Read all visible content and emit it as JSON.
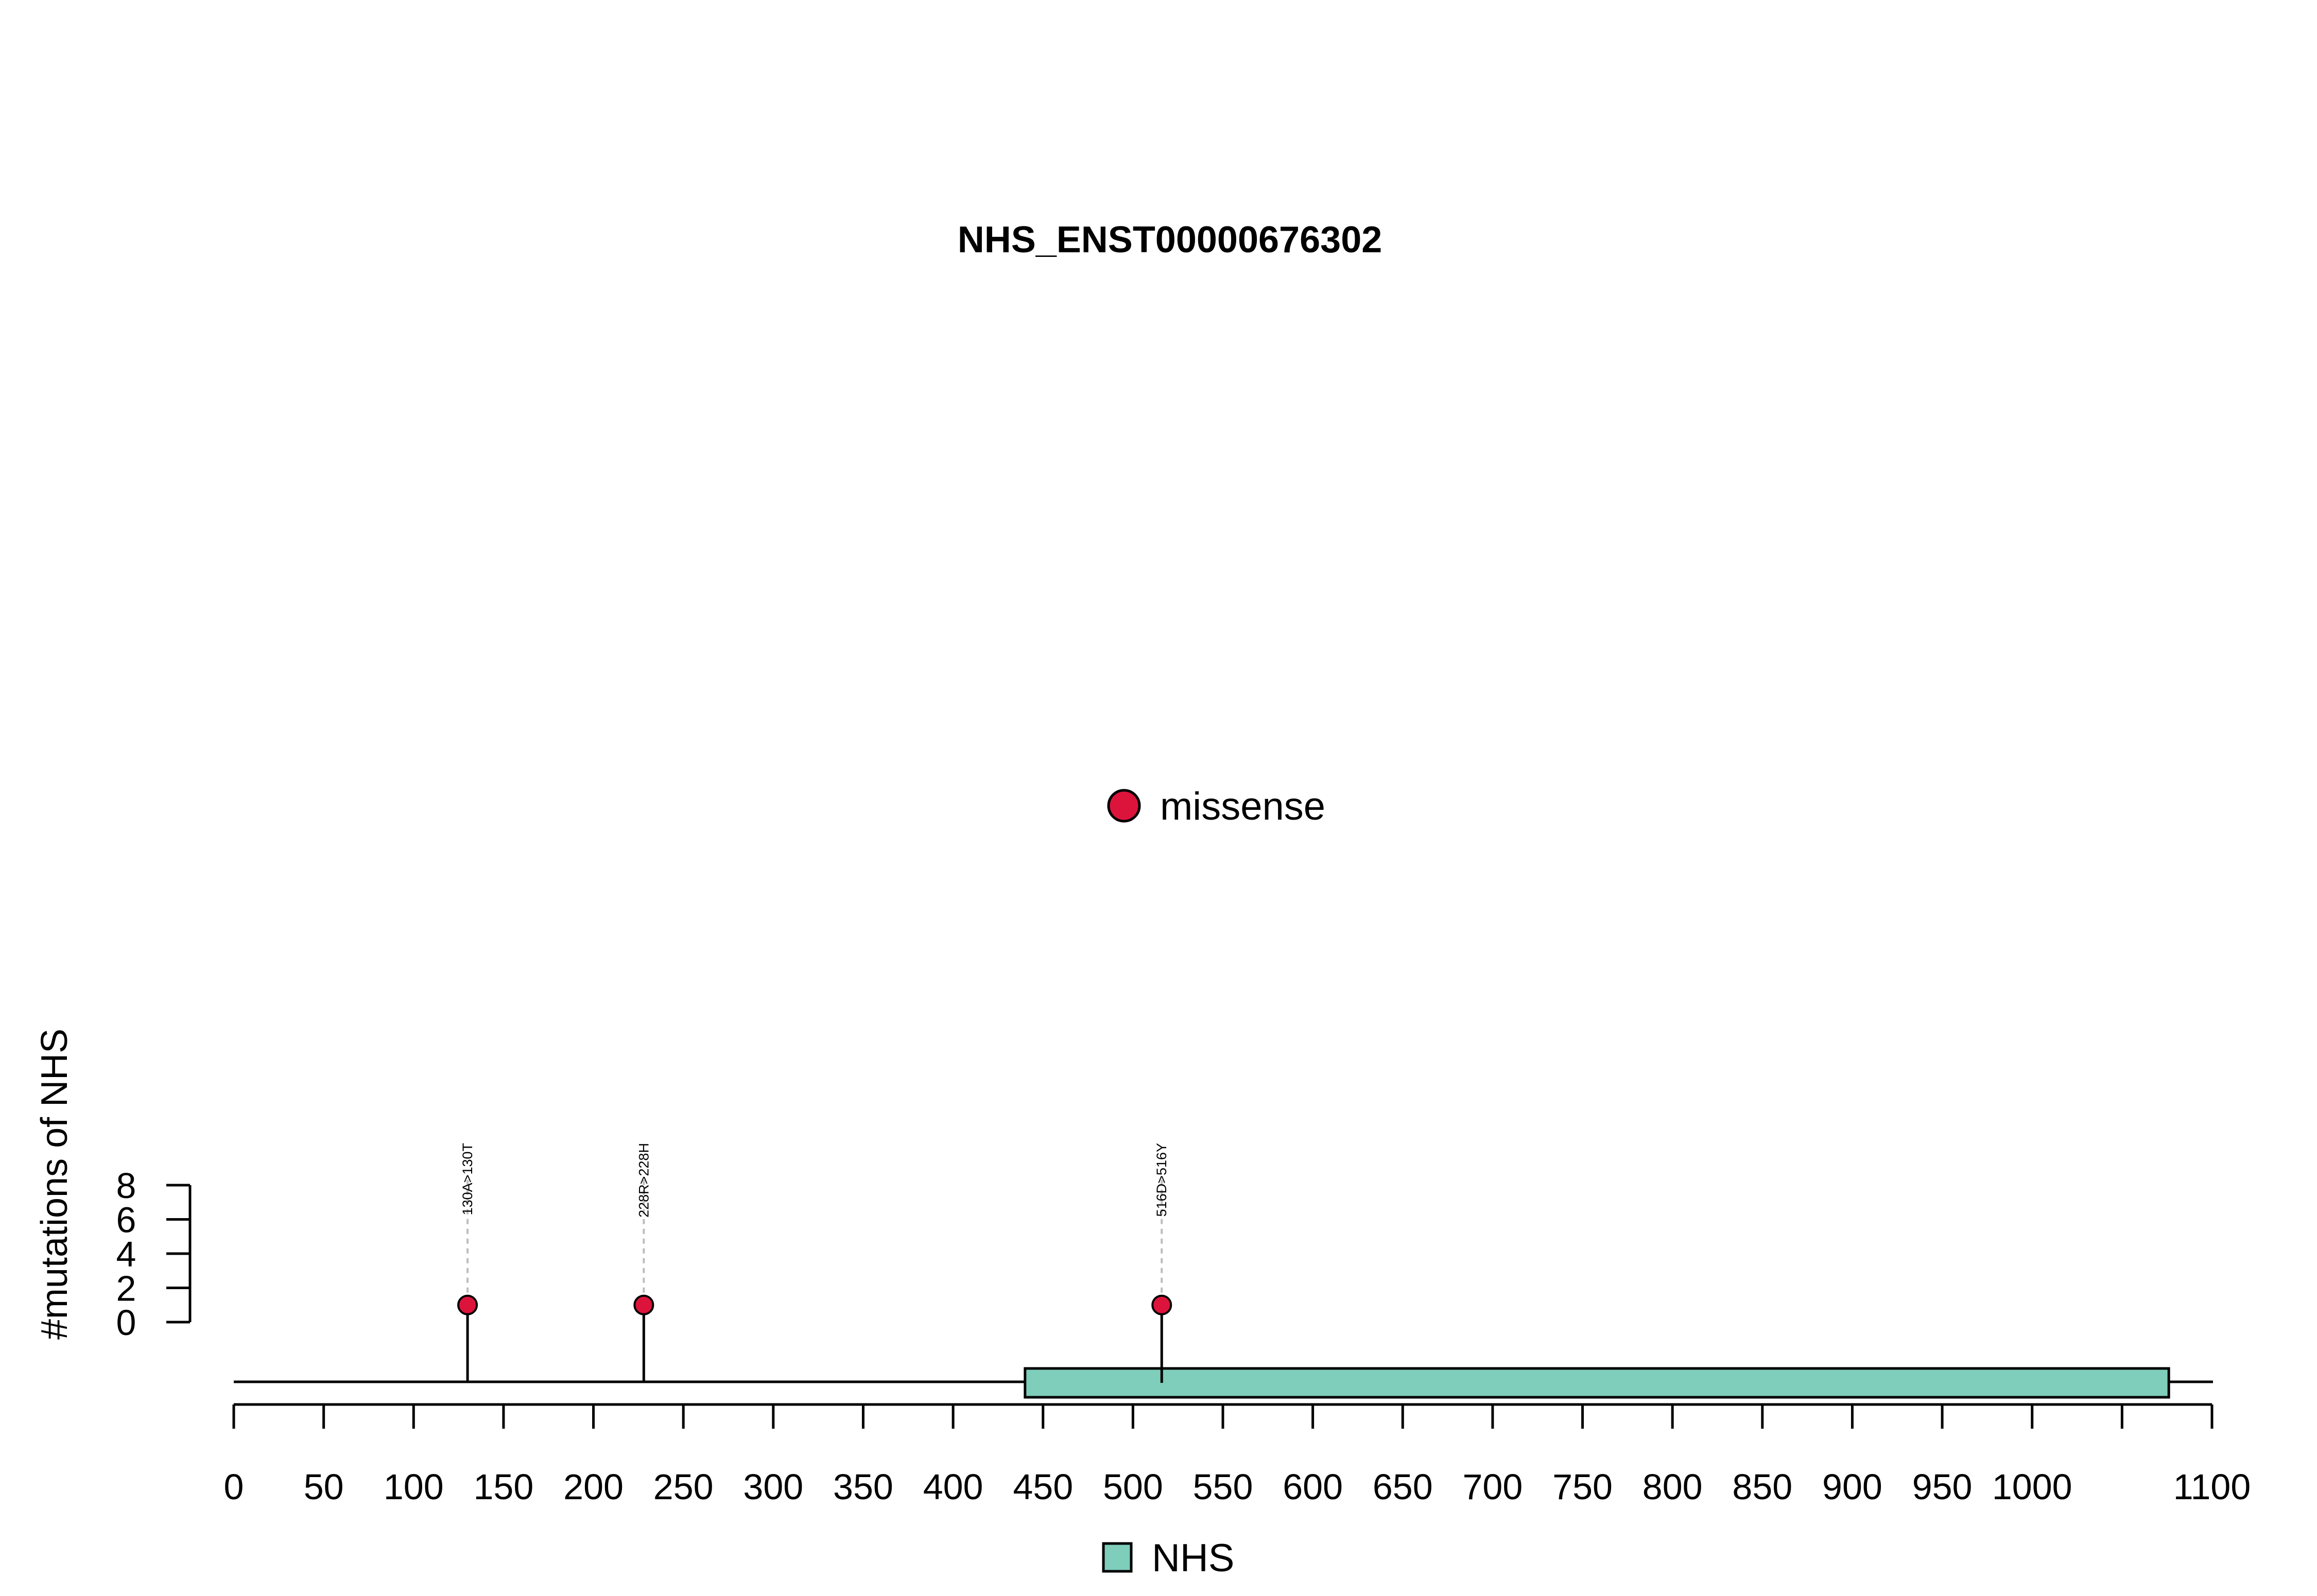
{
  "chart_data": {
    "type": "lollipop",
    "title": "NHS_ENST00000676302",
    "ylabel": "#mutations of NHS",
    "xlabel": "",
    "xlim": [
      0,
      1100
    ],
    "x_ticks": [
      0,
      50,
      100,
      150,
      200,
      250,
      300,
      350,
      400,
      450,
      500,
      550,
      600,
      650,
      700,
      750,
      800,
      850,
      900,
      950,
      1000,
      1100
    ],
    "x_tick_marks": [
      0,
      50,
      100,
      150,
      200,
      250,
      300,
      350,
      400,
      450,
      500,
      550,
      600,
      650,
      700,
      750,
      800,
      850,
      900,
      950,
      1000,
      1050,
      1100
    ],
    "ylim": [
      0,
      8
    ],
    "y_ticks": [
      0,
      2,
      4,
      6,
      8
    ],
    "grid": false,
    "mutation_legend": [
      {
        "label": "missense",
        "color": "#dc143c"
      }
    ],
    "domain_legend": [
      {
        "label": "NHS",
        "color": "#7fcdbb"
      }
    ],
    "domains": [
      {
        "name": "NHS",
        "start": 440,
        "end": 1076,
        "color": "#7fcdbb"
      }
    ],
    "mutations": [
      {
        "position": 130,
        "label": "130A>130T",
        "count": 1,
        "type": "missense"
      },
      {
        "position": 228,
        "label": "228R>228H",
        "count": 1,
        "type": "missense"
      },
      {
        "position": 516,
        "label": "516D>516Y",
        "count": 1,
        "type": "missense"
      }
    ]
  }
}
